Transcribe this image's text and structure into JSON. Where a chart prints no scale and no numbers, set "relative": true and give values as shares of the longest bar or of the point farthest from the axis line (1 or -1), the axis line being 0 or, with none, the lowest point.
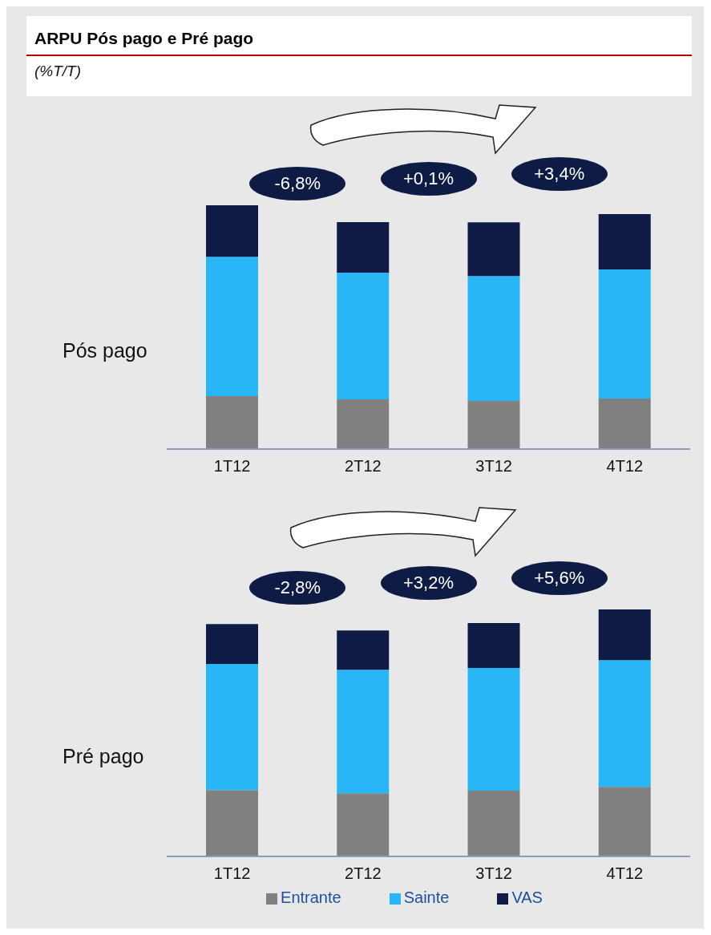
{
  "chart_data": [
    {
      "type": "bar",
      "title": "ARPU Pós pago e Pré pago",
      "subtitle": "(%T/T)",
      "ylabel": "Pós pago",
      "stacked": true,
      "relative": true,
      "legend": false,
      "grid": false,
      "categories": [
        "1T12",
        "2T12",
        "3T12",
        "4T12"
      ],
      "annotations": [
        "-6,8%",
        "+0,1%",
        "+3,4%"
      ],
      "series": [
        {
          "color": "#808080",
          "values": [
            0.217,
            0.204,
            0.197,
            0.207
          ]
        },
        {
          "color": "#29b6f6",
          "values": [
            0.572,
            0.52,
            0.513,
            0.53
          ]
        },
        {
          "color": "#0d1b45",
          "values": [
            0.211,
            0.207,
            0.22,
            0.227
          ]
        }
      ]
    },
    {
      "type": "bar",
      "ylabel": "Pré pago",
      "stacked": true,
      "relative": true,
      "legend": "bottom",
      "grid": false,
      "categories": [
        "1T12",
        "2T12",
        "3T12",
        "4T12"
      ],
      "annotations": [
        "-2,8%",
        "+3,2%",
        "+5,6%"
      ],
      "series": [
        {
          "name": "Entrante",
          "color": "#808080",
          "values": [
            0.269,
            0.256,
            0.266,
            0.282
          ]
        },
        {
          "name": "Sainte",
          "color": "#29b6f6",
          "values": [
            0.51,
            0.5,
            0.497,
            0.513
          ]
        },
        {
          "name": "VAS",
          "color": "#0d1b45",
          "values": [
            0.162,
            0.159,
            0.182,
            0.205
          ]
        }
      ]
    }
  ]
}
